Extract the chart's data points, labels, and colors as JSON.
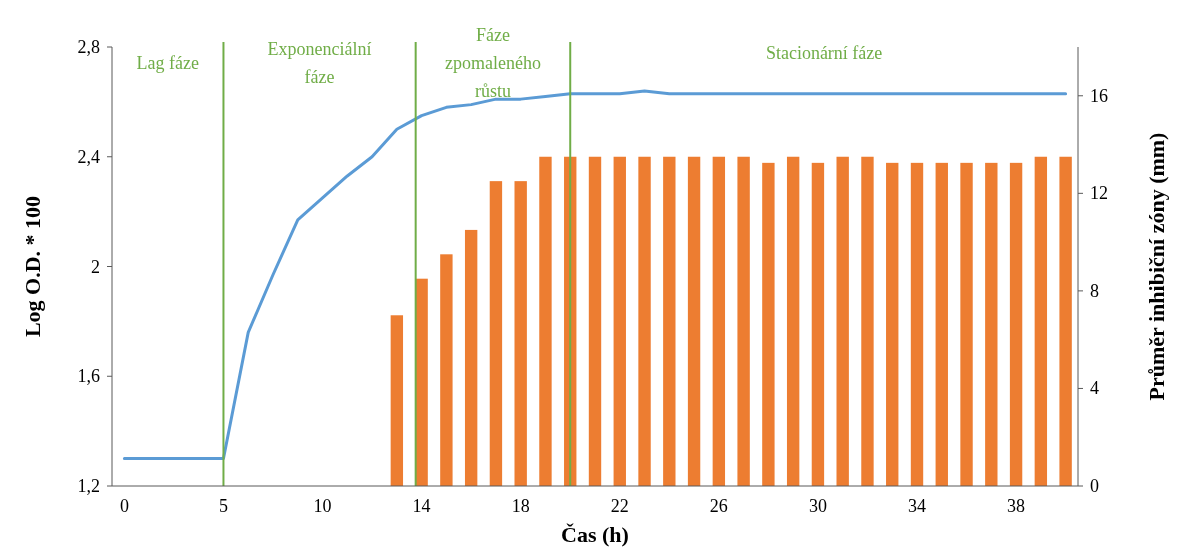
{
  "chart_data": {
    "type": "bar",
    "xlabel": "Čas (h)",
    "ylabel": "Log O.D. * 100",
    "y2label": "Průměr inhibiční zóny (mm)",
    "categories": [
      "0",
      null,
      null,
      null,
      "5",
      null,
      null,
      null,
      "10",
      null,
      null,
      null,
      "14",
      null,
      null,
      null,
      "18",
      null,
      null,
      null,
      "22",
      null,
      null,
      null,
      "26",
      null,
      null,
      null,
      "30",
      null,
      null,
      null,
      "34",
      null,
      null,
      null,
      "38",
      null,
      null
    ],
    "series": [
      {
        "type": "line",
        "color": "#5b9bd5",
        "values": [
          1.3,
          1.3,
          1.3,
          1.3,
          1.3,
          1.76,
          1.97,
          2.17,
          2.25,
          2.33,
          2.4,
          2.5,
          2.55,
          2.58,
          2.59,
          2.61,
          2.61,
          2.62,
          2.63,
          2.63,
          2.63,
          2.64,
          2.63,
          2.63,
          2.63,
          2.63,
          2.63,
          2.63,
          2.63,
          2.63,
          2.63,
          2.63,
          2.63,
          2.63,
          2.63,
          2.63,
          2.63,
          2.63,
          2.63
        ]
      },
      {
        "axis": "y2",
        "color": "#ed7d31",
        "values": [
          null,
          null,
          null,
          null,
          null,
          null,
          null,
          null,
          null,
          null,
          null,
          7,
          8.5,
          9.5,
          10.5,
          12.5,
          12.5,
          13.5,
          13.5,
          13.5,
          13.5,
          13.5,
          13.5,
          13.5,
          13.5,
          13.5,
          13.25,
          13.5,
          13.25,
          13.5,
          13.5,
          13.25,
          13.25,
          13.25,
          13.25,
          13.25,
          13.25,
          13.5,
          13.5
        ]
      }
    ],
    "ylim": [
      1.2,
      2.8
    ],
    "yticks": [
      {
        "value": 1.2,
        "label": "1,2"
      },
      {
        "value": 1.6,
        "label": "1,6"
      },
      2,
      {
        "value": 2.4,
        "label": "2,4"
      },
      {
        "value": 2.8,
        "label": "2,8"
      }
    ],
    "y2lim": [
      0,
      18
    ],
    "y2ticks": [
      0,
      4,
      8,
      12,
      16
    ],
    "annotations": [
      "Lag fáze",
      "Exponenciální\nfáze",
      "Fáze\nzpomaleného\nrůstu",
      "Stacionární fáze"
    ]
  }
}
